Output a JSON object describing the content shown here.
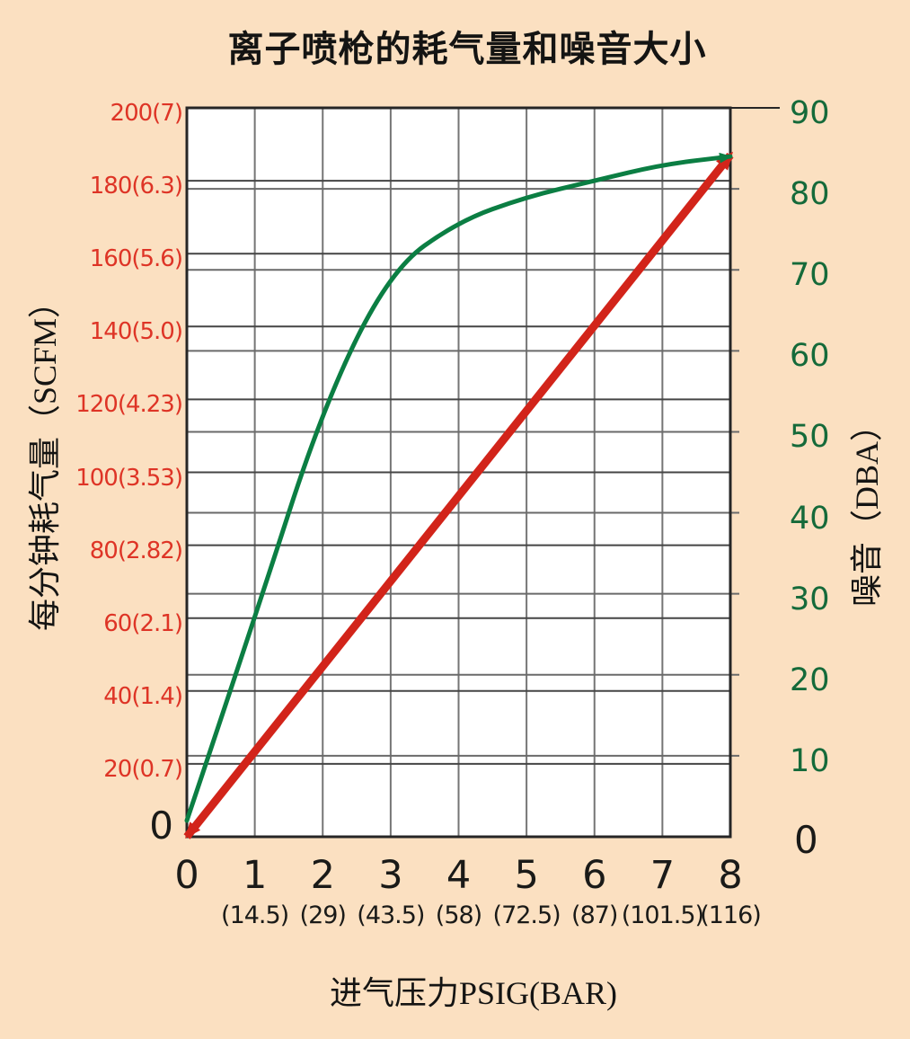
{
  "title": "离子喷枪的耗气量和噪音大小",
  "colors": {
    "background": "#FBE0C1",
    "plot_background": "#FFFFFF",
    "border": "#262626",
    "grid_vertical": "#757575",
    "grid_left_scale": "#454545",
    "grid_right_scale": "#6A6A6A",
    "red_series": "#D2241A",
    "red_labels": "#DE3426",
    "green_series": "#0B7E43",
    "green_labels": "#156A3A",
    "black_text": "#1A1A18"
  },
  "chart_data": {
    "type": "line",
    "title": "离子喷枪的耗气量和噪音大小",
    "xlabel": "进气压力PSIG(BAR)",
    "x_range": [
      0,
      8
    ],
    "grid": true,
    "legend": "none",
    "x_ticks": [
      {
        "value": 0,
        "label": "0",
        "sub": ""
      },
      {
        "value": 1,
        "label": "1",
        "sub": "(14.5)"
      },
      {
        "value": 2,
        "label": "2",
        "sub": "(29)"
      },
      {
        "value": 3,
        "label": "3",
        "sub": "(43.5)"
      },
      {
        "value": 4,
        "label": "4",
        "sub": "(58)"
      },
      {
        "value": 5,
        "label": "5",
        "sub": "(72.5)"
      },
      {
        "value": 6,
        "label": "6",
        "sub": "(87)"
      },
      {
        "value": 7,
        "label": "7",
        "sub": "(101.5)"
      },
      {
        "value": 8,
        "label": "8",
        "sub": "(116)"
      }
    ],
    "left_axis": {
      "title": "每分钟耗气量（SCFM）",
      "range": [
        0,
        200
      ],
      "ticks": [
        {
          "value": 200,
          "label": "200(7)"
        },
        {
          "value": 180,
          "label": "180(6.3)"
        },
        {
          "value": 160,
          "label": "160(5.6)"
        },
        {
          "value": 140,
          "label": "140(5.0)"
        },
        {
          "value": 120,
          "label": "120(4.23)"
        },
        {
          "value": 100,
          "label": "100(3.53)"
        },
        {
          "value": 80,
          "label": "80(2.82)"
        },
        {
          "value": 60,
          "label": "60(2.1)"
        },
        {
          "value": 40,
          "label": "40(1.4)"
        },
        {
          "value": 20,
          "label": "20(0.7)"
        },
        {
          "value": 0,
          "label": "0",
          "emphasis": true
        }
      ]
    },
    "right_axis": {
      "title": "噪音（DBA）",
      "range": [
        0,
        90
      ],
      "ticks": [
        {
          "value": 90,
          "label": "90"
        },
        {
          "value": 80,
          "label": "80"
        },
        {
          "value": 70,
          "label": "70"
        },
        {
          "value": 60,
          "label": "60"
        },
        {
          "value": 50,
          "label": "50"
        },
        {
          "value": 40,
          "label": "40"
        },
        {
          "value": 30,
          "label": "30"
        },
        {
          "value": 20,
          "label": "20"
        },
        {
          "value": 10,
          "label": "10"
        },
        {
          "value": 0,
          "label": "0",
          "emphasis": true
        }
      ]
    },
    "series": [
      {
        "name": "每分钟耗气量（SCFM）",
        "axis": "left",
        "style": "straight-thick-arrows",
        "x": [
          0,
          1,
          2,
          3,
          4,
          5,
          6,
          7,
          8
        ],
        "values": [
          0,
          23,
          47,
          70,
          94,
          117,
          140,
          164,
          187
        ]
      },
      {
        "name": "噪音（DBA）",
        "axis": "right",
        "style": "smooth",
        "x": [
          0,
          1,
          2,
          3,
          4,
          5,
          6,
          7,
          8
        ],
        "values": [
          2,
          27,
          53,
          70,
          76,
          79,
          81,
          83,
          84
        ]
      }
    ]
  }
}
